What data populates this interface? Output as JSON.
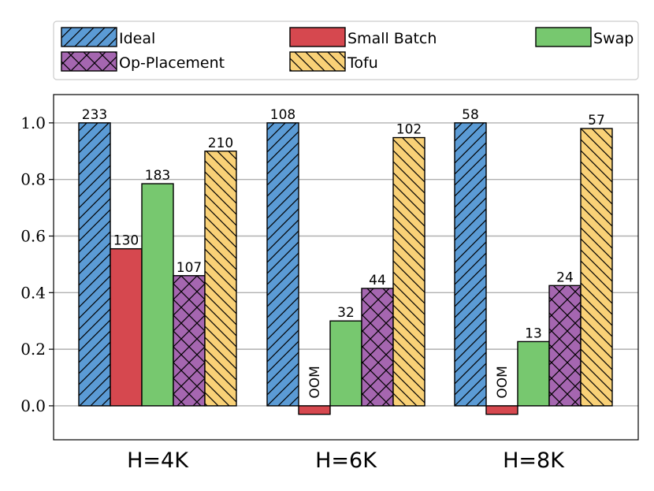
{
  "chart_data": {
    "type": "bar",
    "categories": [
      "H=4K",
      "H=6K",
      "H=8K"
    ],
    "series": [
      {
        "name": "Ideal",
        "values": [
          1.0,
          1.0,
          1.0
        ],
        "labels": [
          "233",
          "108",
          "58"
        ],
        "color": "#5b9bd5",
        "hatch": "diag-right"
      },
      {
        "name": "Small Batch",
        "values": [
          0.555,
          -0.03,
          -0.03
        ],
        "labels": [
          "130",
          "OOM",
          "OOM"
        ],
        "color": "#d6484f",
        "hatch": "none"
      },
      {
        "name": "Swap",
        "values": [
          0.785,
          0.3,
          0.227
        ],
        "labels": [
          "183",
          "32",
          "13"
        ],
        "color": "#77c86f",
        "hatch": "none"
      },
      {
        "name": "Op-Placement",
        "values": [
          0.46,
          0.415,
          0.425
        ],
        "labels": [
          "107",
          "44",
          "24"
        ],
        "color": "#a566b0",
        "hatch": "cross"
      },
      {
        "name": "Tofu",
        "values": [
          0.9,
          0.948,
          0.98
        ],
        "labels": [
          "210",
          "102",
          "57"
        ],
        "color": "#f9d177",
        "hatch": "diag-left"
      }
    ],
    "yticks": [
      0.0,
      0.2,
      0.4,
      0.6,
      0.8,
      1.0
    ],
    "ytick_labels": [
      "0.0",
      "0.2",
      "0.4",
      "0.6",
      "0.8",
      "1.0"
    ],
    "ylim": [
      -0.12,
      1.1
    ],
    "grid": "horizontal",
    "legend": {
      "placement": "top",
      "columns": 3
    }
  }
}
